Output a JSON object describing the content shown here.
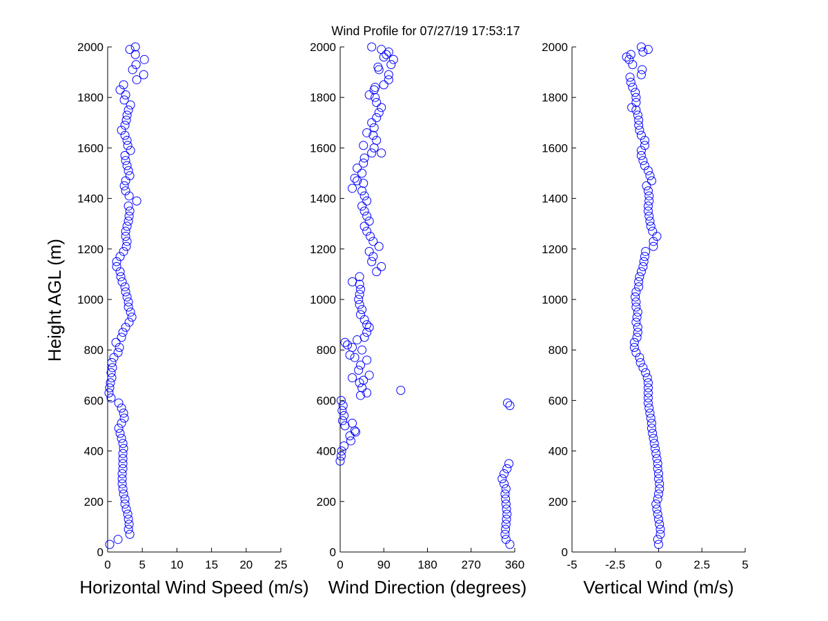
{
  "figure": {
    "title": "Wind Profile for  07/27/19 17:53:17",
    "ylabel": "Height AGL (m)"
  },
  "chart_data": [
    {
      "type": "scatter",
      "name": "horizontal-wind-speed",
      "xlabel": "Horizontal Wind Speed (m/s)",
      "ylabel": "Height AGL (m)",
      "xlim": [
        0,
        25
      ],
      "ylim": [
        0,
        2000
      ],
      "xticks": [
        0,
        5,
        10,
        15,
        20,
        25
      ],
      "xtick_labels": [
        "0",
        "5",
        "10",
        "15",
        "20",
        "25"
      ],
      "yticks": [
        0,
        200,
        400,
        600,
        800,
        1000,
        1200,
        1400,
        1600,
        1800,
        2000
      ],
      "ytick_labels": [
        "0",
        "200",
        "400",
        "600",
        "800",
        "1000",
        "1200",
        "1400",
        "1600",
        "1800",
        "2000"
      ],
      "marker_color": "#0000ff",
      "points": [
        [
          0.3,
          30
        ],
        [
          1.5,
          50
        ],
        [
          3.2,
          70
        ],
        [
          3.0,
          90
        ],
        [
          3.1,
          110
        ],
        [
          3.0,
          130
        ],
        [
          2.9,
          150
        ],
        [
          2.7,
          170
        ],
        [
          2.5,
          190
        ],
        [
          2.5,
          210
        ],
        [
          2.3,
          230
        ],
        [
          2.2,
          250
        ],
        [
          2.1,
          270
        ],
        [
          2.1,
          290
        ],
        [
          2.1,
          310
        ],
        [
          2.2,
          330
        ],
        [
          2.2,
          350
        ],
        [
          2.2,
          370
        ],
        [
          2.2,
          390
        ],
        [
          2.3,
          410
        ],
        [
          2.2,
          430
        ],
        [
          2.0,
          450
        ],
        [
          1.8,
          470
        ],
        [
          1.6,
          490
        ],
        [
          2.0,
          510
        ],
        [
          2.4,
          530
        ],
        [
          2.3,
          550
        ],
        [
          2.0,
          570
        ],
        [
          1.6,
          590
        ],
        [
          0.5,
          610
        ],
        [
          0.2,
          630
        ],
        [
          0.3,
          650
        ],
        [
          0.4,
          670
        ],
        [
          0.6,
          690
        ],
        [
          0.5,
          710
        ],
        [
          0.7,
          730
        ],
        [
          0.6,
          750
        ],
        [
          0.9,
          770
        ],
        [
          1.5,
          790
        ],
        [
          1.7,
          810
        ],
        [
          1.2,
          830
        ],
        [
          2.0,
          850
        ],
        [
          2.2,
          870
        ],
        [
          2.6,
          890
        ],
        [
          3.1,
          910
        ],
        [
          3.5,
          930
        ],
        [
          3.3,
          950
        ],
        [
          3.0,
          970
        ],
        [
          3.0,
          990
        ],
        [
          2.8,
          1010
        ],
        [
          2.6,
          1030
        ],
        [
          2.5,
          1050
        ],
        [
          2.1,
          1070
        ],
        [
          1.9,
          1090
        ],
        [
          1.8,
          1110
        ],
        [
          1.3,
          1130
        ],
        [
          1.3,
          1150
        ],
        [
          1.8,
          1170
        ],
        [
          2.3,
          1190
        ],
        [
          2.7,
          1210
        ],
        [
          2.8,
          1230
        ],
        [
          2.6,
          1250
        ],
        [
          2.6,
          1270
        ],
        [
          2.8,
          1290
        ],
        [
          3.0,
          1310
        ],
        [
          3.1,
          1330
        ],
        [
          3.2,
          1350
        ],
        [
          3.0,
          1370
        ],
        [
          4.2,
          1390
        ],
        [
          3.1,
          1410
        ],
        [
          2.6,
          1430
        ],
        [
          2.4,
          1450
        ],
        [
          2.6,
          1470
        ],
        [
          3.2,
          1490
        ],
        [
          3.0,
          1510
        ],
        [
          2.8,
          1530
        ],
        [
          2.6,
          1550
        ],
        [
          2.5,
          1570
        ],
        [
          3.3,
          1590
        ],
        [
          2.9,
          1610
        ],
        [
          2.8,
          1630
        ],
        [
          2.5,
          1650
        ],
        [
          2.0,
          1670
        ],
        [
          2.5,
          1690
        ],
        [
          2.7,
          1710
        ],
        [
          2.8,
          1730
        ],
        [
          3.0,
          1750
        ],
        [
          3.3,
          1770
        ],
        [
          2.4,
          1790
        ],
        [
          2.6,
          1810
        ],
        [
          1.8,
          1830
        ],
        [
          2.3,
          1850
        ],
        [
          4.2,
          1870
        ],
        [
          5.2,
          1890
        ],
        [
          3.6,
          1910
        ],
        [
          4.1,
          1930
        ],
        [
          5.3,
          1950
        ],
        [
          4.0,
          1970
        ],
        [
          3.2,
          1990
        ],
        [
          4.0,
          2000
        ]
      ]
    },
    {
      "type": "scatter",
      "name": "wind-direction",
      "xlabel": "Wind Direction (degrees)",
      "ylabel": "",
      "xlim": [
        0,
        360
      ],
      "ylim": [
        0,
        2000
      ],
      "xticks": [
        0,
        90,
        180,
        270,
        360
      ],
      "xtick_labels": [
        "0",
        "90",
        "180",
        "270",
        "360"
      ],
      "yticks": [
        0,
        200,
        400,
        600,
        800,
        1000,
        1200,
        1400,
        1600,
        1800,
        2000
      ],
      "ytick_labels": [
        "0",
        "200",
        "400",
        "600",
        "800",
        "1000",
        "1200",
        "1400",
        "1600",
        "1800",
        "2000"
      ],
      "marker_color": "#0000ff",
      "points": [
        [
          350,
          30
        ],
        [
          342,
          50
        ],
        [
          340,
          70
        ],
        [
          341,
          90
        ],
        [
          342,
          110
        ],
        [
          343,
          130
        ],
        [
          344,
          150
        ],
        [
          343,
          170
        ],
        [
          342,
          190
        ],
        [
          341,
          210
        ],
        [
          340,
          230
        ],
        [
          342,
          250
        ],
        [
          338,
          270
        ],
        [
          334,
          290
        ],
        [
          338,
          310
        ],
        [
          344,
          330
        ],
        [
          348,
          350
        ],
        [
          0,
          360
        ],
        [
          2,
          380
        ],
        [
          3,
          400
        ],
        [
          8,
          420
        ],
        [
          22,
          440
        ],
        [
          20,
          460
        ],
        [
          32,
          475
        ],
        [
          30,
          480
        ],
        [
          10,
          500
        ],
        [
          25,
          510
        ],
        [
          5,
          520
        ],
        [
          8,
          540
        ],
        [
          4,
          560
        ],
        [
          6,
          580
        ],
        [
          2,
          600
        ],
        [
          345,
          590
        ],
        [
          350,
          580
        ],
        [
          125,
          640
        ],
        [
          42,
          620
        ],
        [
          55,
          630
        ],
        [
          45,
          650
        ],
        [
          40,
          670
        ],
        [
          48,
          680
        ],
        [
          25,
          690
        ],
        [
          60,
          700
        ],
        [
          38,
          720
        ],
        [
          42,
          740
        ],
        [
          55,
          760
        ],
        [
          30,
          770
        ],
        [
          20,
          780
        ],
        [
          45,
          800
        ],
        [
          25,
          810
        ],
        [
          15,
          820
        ],
        [
          10,
          830
        ],
        [
          35,
          840
        ],
        [
          50,
          850
        ],
        [
          55,
          870
        ],
        [
          60,
          890
        ],
        [
          55,
          900
        ],
        [
          50,
          920
        ],
        [
          42,
          940
        ],
        [
          45,
          960
        ],
        [
          40,
          980
        ],
        [
          38,
          1000
        ],
        [
          40,
          1020
        ],
        [
          42,
          1040
        ],
        [
          40,
          1060
        ],
        [
          25,
          1070
        ],
        [
          40,
          1090
        ],
        [
          75,
          1110
        ],
        [
          85,
          1130
        ],
        [
          65,
          1150
        ],
        [
          68,
          1170
        ],
        [
          60,
          1190
        ],
        [
          80,
          1210
        ],
        [
          68,
          1230
        ],
        [
          62,
          1250
        ],
        [
          55,
          1270
        ],
        [
          50,
          1290
        ],
        [
          60,
          1310
        ],
        [
          55,
          1330
        ],
        [
          50,
          1350
        ],
        [
          45,
          1370
        ],
        [
          55,
          1390
        ],
        [
          50,
          1410
        ],
        [
          45,
          1430
        ],
        [
          25,
          1440
        ],
        [
          48,
          1460
        ],
        [
          35,
          1470
        ],
        [
          30,
          1480
        ],
        [
          45,
          1500
        ],
        [
          35,
          1520
        ],
        [
          48,
          1540
        ],
        [
          50,
          1560
        ],
        [
          65,
          1580
        ],
        [
          85,
          1580
        ],
        [
          70,
          1600
        ],
        [
          48,
          1610
        ],
        [
          75,
          1630
        ],
        [
          68,
          1650
        ],
        [
          55,
          1660
        ],
        [
          70,
          1680
        ],
        [
          65,
          1700
        ],
        [
          75,
          1720
        ],
        [
          80,
          1740
        ],
        [
          85,
          1760
        ],
        [
          75,
          1780
        ],
        [
          72,
          1800
        ],
        [
          60,
          1810
        ],
        [
          70,
          1830
        ],
        [
          72,
          1840
        ],
        [
          90,
          1850
        ],
        [
          100,
          1870
        ],
        [
          100,
          1890
        ],
        [
          80,
          1910
        ],
        [
          78,
          1920
        ],
        [
          105,
          1930
        ],
        [
          110,
          1950
        ],
        [
          90,
          1960
        ],
        [
          95,
          1970
        ],
        [
          100,
          1980
        ],
        [
          65,
          2000
        ],
        [
          85,
          1990
        ]
      ]
    },
    {
      "type": "scatter",
      "name": "vertical-wind",
      "xlabel": "Vertical Wind (m/s)",
      "ylabel": "",
      "xlim": [
        -5,
        5
      ],
      "ylim": [
        0,
        2000
      ],
      "xticks": [
        -5,
        -2.5,
        0,
        2.5,
        5
      ],
      "xtick_labels": [
        "-5",
        "-2.5",
        "0",
        "2.5",
        "5"
      ],
      "yticks": [
        0,
        200,
        400,
        600,
        800,
        1000,
        1200,
        1400,
        1600,
        1800,
        2000
      ],
      "ytick_labels": [
        "0",
        "200",
        "400",
        "600",
        "800",
        "1000",
        "1200",
        "1400",
        "1600",
        "1800",
        "2000"
      ],
      "marker_color": "#0000ff",
      "points": [
        [
          0.0,
          30
        ],
        [
          -0.05,
          50
        ],
        [
          0.1,
          70
        ],
        [
          0.1,
          90
        ],
        [
          0.05,
          110
        ],
        [
          0.0,
          130
        ],
        [
          -0.05,
          150
        ],
        [
          -0.1,
          170
        ],
        [
          -0.15,
          190
        ],
        [
          -0.05,
          210
        ],
        [
          0.0,
          230
        ],
        [
          0.05,
          250
        ],
        [
          0.05,
          270
        ],
        [
          0.0,
          290
        ],
        [
          0.0,
          310
        ],
        [
          -0.05,
          330
        ],
        [
          -0.05,
          350
        ],
        [
          -0.1,
          370
        ],
        [
          -0.15,
          390
        ],
        [
          -0.2,
          410
        ],
        [
          -0.25,
          430
        ],
        [
          -0.3,
          450
        ],
        [
          -0.35,
          470
        ],
        [
          -0.4,
          490
        ],
        [
          -0.4,
          510
        ],
        [
          -0.45,
          530
        ],
        [
          -0.5,
          550
        ],
        [
          -0.55,
          570
        ],
        [
          -0.6,
          590
        ],
        [
          -0.6,
          610
        ],
        [
          -0.6,
          630
        ],
        [
          -0.6,
          650
        ],
        [
          -0.6,
          670
        ],
        [
          -0.65,
          690
        ],
        [
          -0.75,
          710
        ],
        [
          -0.9,
          730
        ],
        [
          -1.05,
          750
        ],
        [
          -1.1,
          770
        ],
        [
          -1.3,
          790
        ],
        [
          -1.4,
          810
        ],
        [
          -1.4,
          830
        ],
        [
          -1.25,
          850
        ],
        [
          -1.2,
          870
        ],
        [
          -1.2,
          890
        ],
        [
          -1.3,
          910
        ],
        [
          -1.25,
          930
        ],
        [
          -1.2,
          950
        ],
        [
          -1.3,
          970
        ],
        [
          -1.3,
          990
        ],
        [
          -1.35,
          1010
        ],
        [
          -1.3,
          1030
        ],
        [
          -1.15,
          1050
        ],
        [
          -1.15,
          1070
        ],
        [
          -1.1,
          1090
        ],
        [
          -1.0,
          1110
        ],
        [
          -0.9,
          1130
        ],
        [
          -0.85,
          1150
        ],
        [
          -0.8,
          1170
        ],
        [
          -0.75,
          1190
        ],
        [
          -0.3,
          1210
        ],
        [
          -0.3,
          1230
        ],
        [
          -0.1,
          1250
        ],
        [
          -0.35,
          1270
        ],
        [
          -0.45,
          1290
        ],
        [
          -0.5,
          1310
        ],
        [
          -0.55,
          1330
        ],
        [
          -0.6,
          1350
        ],
        [
          -0.6,
          1370
        ],
        [
          -0.55,
          1390
        ],
        [
          -0.55,
          1410
        ],
        [
          -0.6,
          1430
        ],
        [
          -0.7,
          1450
        ],
        [
          -0.4,
          1470
        ],
        [
          -0.5,
          1490
        ],
        [
          -0.6,
          1510
        ],
        [
          -0.8,
          1530
        ],
        [
          -0.9,
          1550
        ],
        [
          -1.0,
          1570
        ],
        [
          -1.0,
          1590
        ],
        [
          -0.8,
          1610
        ],
        [
          -0.8,
          1630
        ],
        [
          -1.0,
          1650
        ],
        [
          -1.1,
          1670
        ],
        [
          -1.15,
          1690
        ],
        [
          -1.15,
          1710
        ],
        [
          -1.2,
          1730
        ],
        [
          -1.3,
          1750
        ],
        [
          -1.55,
          1760
        ],
        [
          -1.3,
          1780
        ],
        [
          -1.3,
          1800
        ],
        [
          -1.35,
          1820
        ],
        [
          -1.5,
          1840
        ],
        [
          -1.6,
          1860
        ],
        [
          -1.65,
          1880
        ],
        [
          -1.0,
          1890
        ],
        [
          -0.95,
          1910
        ],
        [
          -1.5,
          1930
        ],
        [
          -1.7,
          1950
        ],
        [
          -1.85,
          1960
        ],
        [
          -1.6,
          1970
        ],
        [
          -0.9,
          1980
        ],
        [
          -0.6,
          1990
        ],
        [
          -1.0,
          2000
        ]
      ]
    }
  ]
}
